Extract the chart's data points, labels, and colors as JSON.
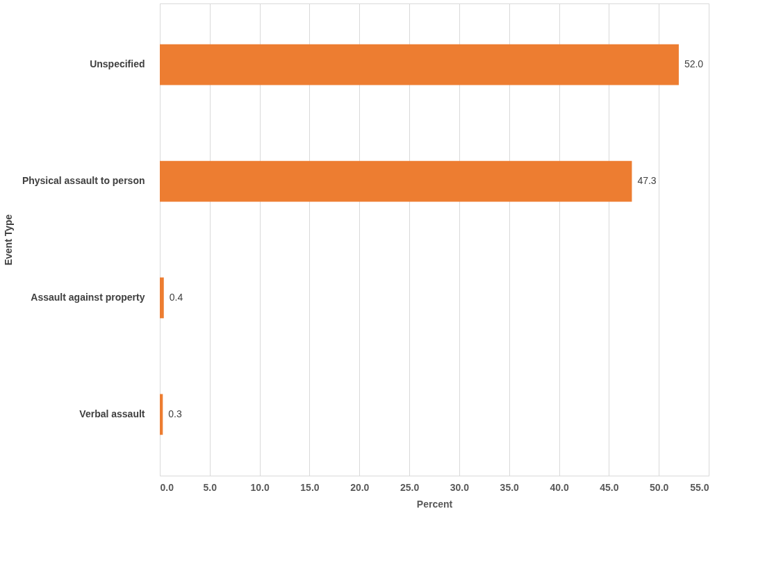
{
  "chart_data": {
    "type": "bar",
    "orientation": "horizontal",
    "categories": [
      "Unspecified",
      "Physical assault to person",
      "Assault against property",
      "Verbal assault"
    ],
    "values": [
      52.0,
      47.3,
      0.4,
      0.3
    ],
    "color": "#ed7d31",
    "xlabel": "Percent",
    "ylabel": "Event Type",
    "xlim": [
      0,
      55
    ],
    "xticks": [
      {
        "value": 0,
        "label": "0.0"
      },
      {
        "value": 5,
        "label": "5.0"
      },
      {
        "value": 10,
        "label": "10.0"
      },
      {
        "value": 15,
        "label": "15.0"
      },
      {
        "value": 20,
        "label": "20.0"
      },
      {
        "value": 25,
        "label": "25.0"
      },
      {
        "value": 30,
        "label": "30.0"
      },
      {
        "value": 35,
        "label": "35.0"
      },
      {
        "value": 40,
        "label": "40.0"
      },
      {
        "value": 45,
        "label": "45.0"
      },
      {
        "value": 50,
        "label": "50.0"
      },
      {
        "value": 55,
        "label": "55.0"
      }
    ],
    "value_labels": [
      "52.0",
      "47.3",
      "0.4",
      "0.3"
    ],
    "grid": "x"
  }
}
